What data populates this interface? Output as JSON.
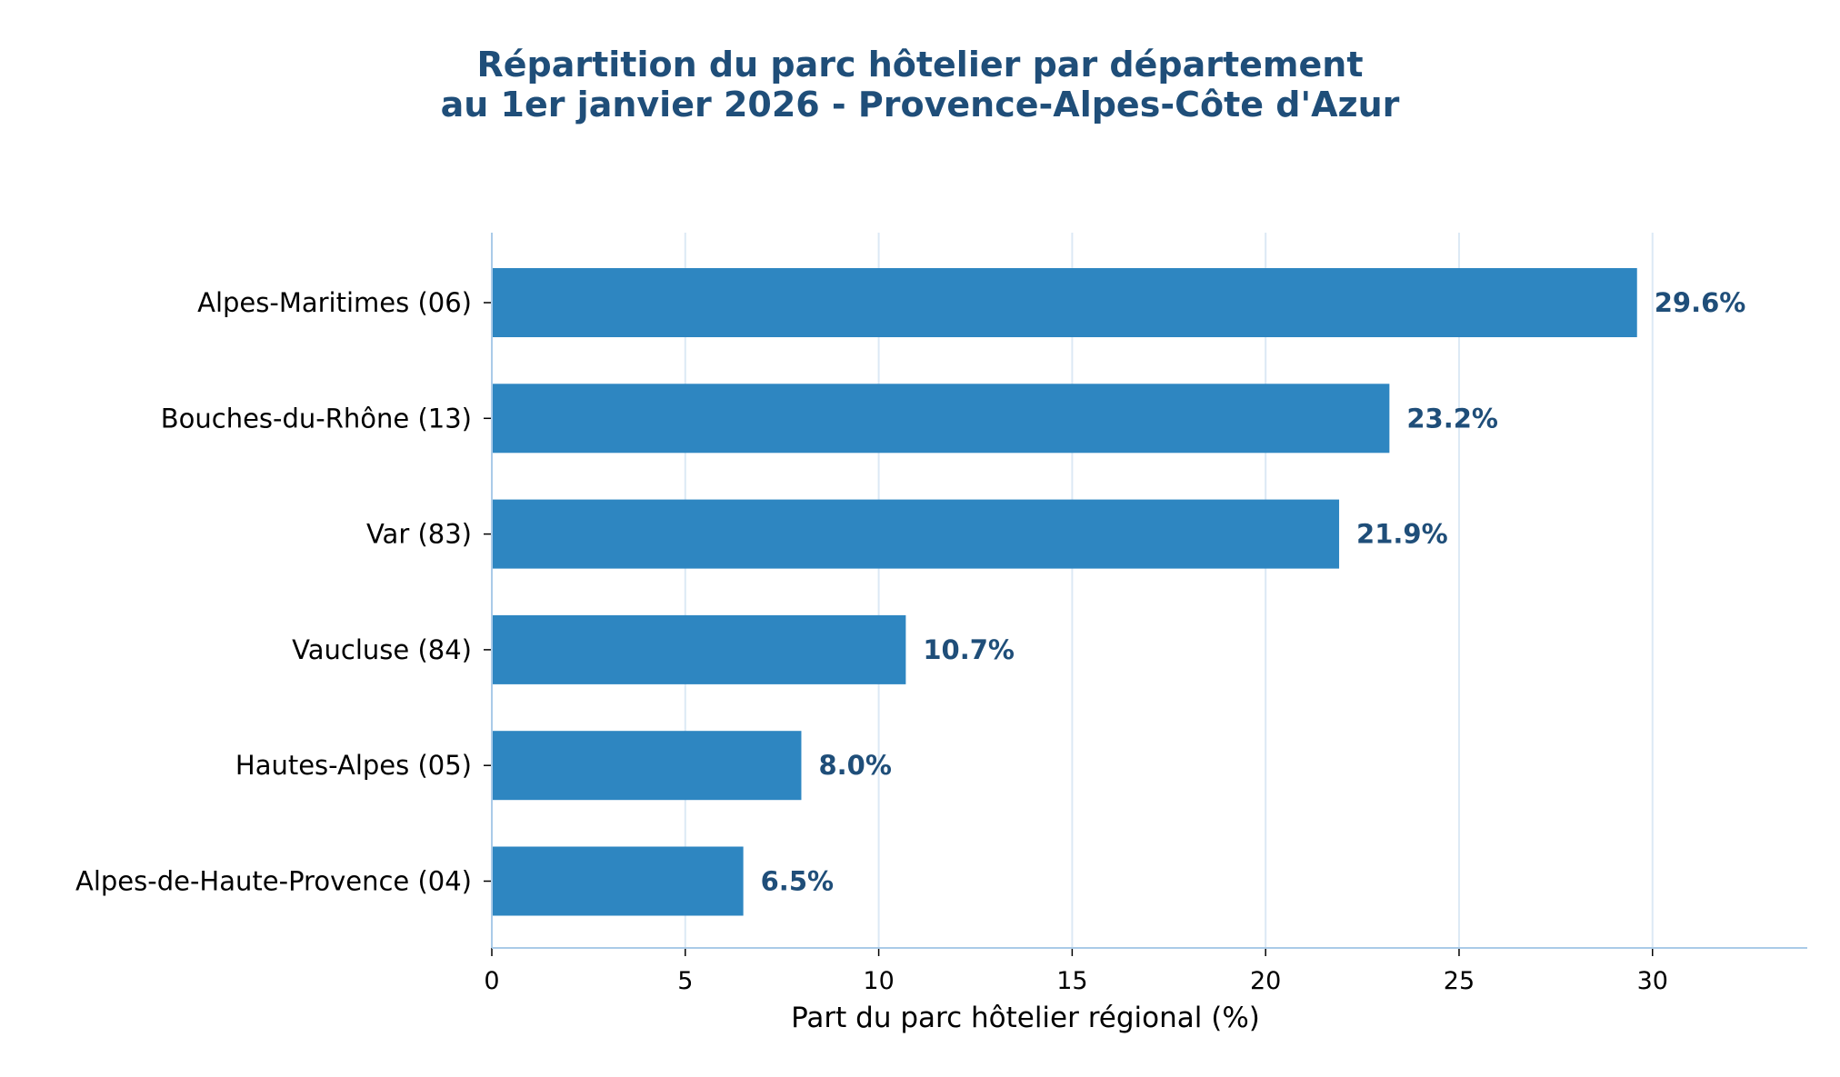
{
  "chart_data": {
    "type": "bar",
    "orientation": "horizontal",
    "title": "Répartition du parc hôtelier par département",
    "subtitle": "au 1er janvier 2026 - Provence-Alpes-Côte d'Azur",
    "xlabel": "Part du parc hôtelier régional (%)",
    "ylabel": "",
    "categories": [
      "Alpes-Maritimes (06)",
      "Bouches-du-Rhône (13)",
      "Var (83)",
      "Vaucluse (84)",
      "Hautes-Alpes (05)",
      "Alpes-de-Haute-Provence (04)"
    ],
    "values": [
      29.6,
      23.2,
      21.9,
      10.7,
      8.0,
      6.5
    ],
    "value_labels": [
      "29.6%",
      "23.2%",
      "21.9%",
      "10.7%",
      "8.0%",
      "6.5%"
    ],
    "xlim": [
      0,
      34
    ],
    "xticks": [
      0,
      5,
      10,
      15,
      20,
      25,
      30
    ],
    "xtick_labels": [
      "0",
      "5",
      "10",
      "15",
      "20",
      "25",
      "30"
    ],
    "grid": "vertical",
    "legend": "none",
    "colors": {
      "bar": "#2e86c1",
      "title": "#1f4e79",
      "value_label": "#1f4e79",
      "grid": "#dce9f5",
      "axis": "#aacbe8"
    }
  }
}
